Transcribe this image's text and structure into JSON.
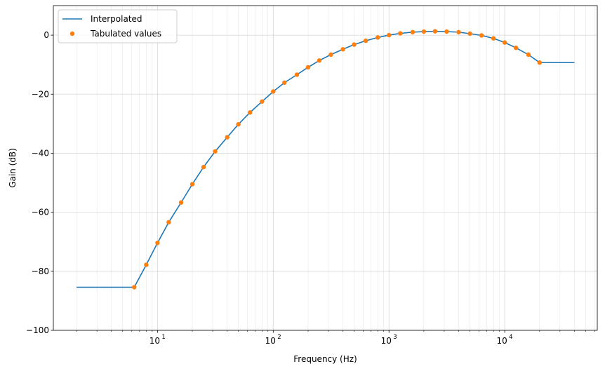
{
  "chart_data": {
    "type": "line",
    "xlabel": "Frequency (Hz)",
    "ylabel": "Gain (dB)",
    "xscale": "log",
    "xlim": [
      1.26,
      63000
    ],
    "ylim": [
      -100,
      10
    ],
    "grid": "on (major and minor)",
    "legend_position": "top-left",
    "x_tick_labels": [
      "10",
      "10",
      "10",
      "10"
    ],
    "x_tick_exponents": [
      "1",
      "2",
      "3",
      "4"
    ],
    "x_tick_values": [
      10,
      100,
      1000,
      10000
    ],
    "y_tick_labels": [
      "−100",
      "−80",
      "−60",
      "−40",
      "−20",
      "0"
    ],
    "y_tick_values": [
      -100,
      -80,
      -60,
      -40,
      -20,
      0
    ],
    "series": [
      {
        "name": "Interpolated",
        "style": "line",
        "color": "#1f77b4",
        "x": [
          2,
          6.3,
          8,
          10,
          12.5,
          16,
          20,
          25,
          31.5,
          40,
          50,
          63,
          80,
          100,
          125,
          160,
          200,
          250,
          315,
          400,
          500,
          630,
          800,
          1000,
          1250,
          1600,
          2000,
          2500,
          3150,
          4000,
          5000,
          6300,
          8000,
          10000,
          12500,
          16000,
          20000,
          40000
        ],
        "y": [
          -85.4,
          -85.4,
          -77.8,
          -70.4,
          -63.4,
          -56.7,
          -50.5,
          -44.7,
          -39.4,
          -34.6,
          -30.2,
          -26.2,
          -22.5,
          -19.1,
          -16.1,
          -13.4,
          -10.9,
          -8.6,
          -6.6,
          -4.8,
          -3.2,
          -1.9,
          -0.8,
          0.0,
          0.6,
          1.0,
          1.2,
          1.3,
          1.2,
          1.0,
          0.5,
          -0.1,
          -1.1,
          -2.5,
          -4.3,
          -6.6,
          -9.3,
          -9.3
        ]
      },
      {
        "name": "Tabulated values",
        "style": "markers",
        "color": "#ff7f0e",
        "x": [
          6.3,
          8,
          10,
          12.5,
          16,
          20,
          25,
          31.5,
          40,
          50,
          63,
          80,
          100,
          125,
          160,
          200,
          250,
          315,
          400,
          500,
          630,
          800,
          1000,
          1250,
          1600,
          2000,
          2500,
          3150,
          4000,
          5000,
          6300,
          8000,
          10000,
          12500,
          16000,
          20000
        ],
        "y": [
          -85.4,
          -77.8,
          -70.4,
          -63.4,
          -56.7,
          -50.5,
          -44.7,
          -39.4,
          -34.6,
          -30.2,
          -26.2,
          -22.5,
          -19.1,
          -16.1,
          -13.4,
          -10.9,
          -8.6,
          -6.6,
          -4.8,
          -3.2,
          -1.9,
          -0.8,
          0.0,
          0.6,
          1.0,
          1.2,
          1.3,
          1.2,
          1.0,
          0.5,
          -0.1,
          -1.1,
          -2.5,
          -4.3,
          -6.6,
          -9.3
        ]
      }
    ]
  }
}
